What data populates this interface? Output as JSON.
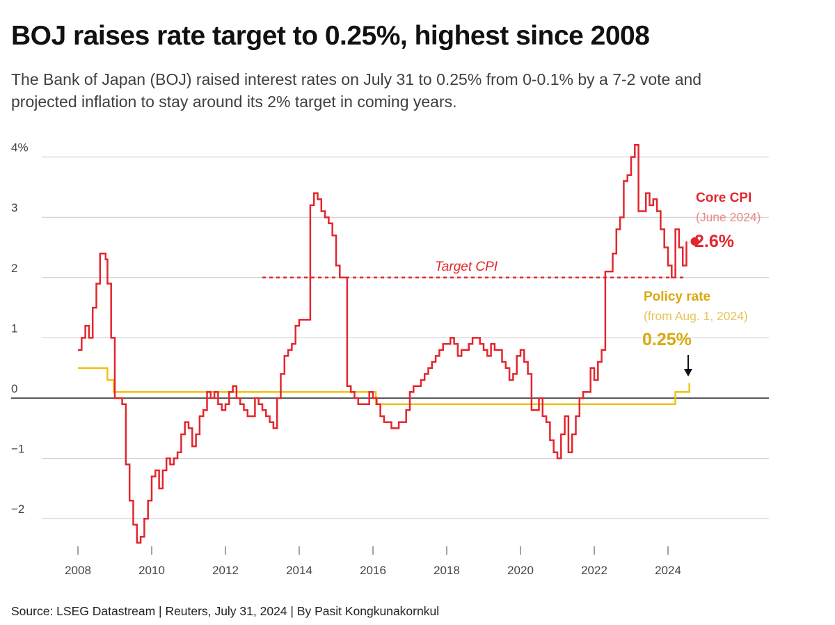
{
  "title": "BOJ raises rate target to 0.25%, highest since 2008",
  "subtitle": "The Bank of Japan (BOJ) raised interest rates on July 31 to 0.25% from 0-0.1% by a 7-2 vote and projected inflation to stay around its 2% target in coming years.",
  "source": "Source: LSEG Datastream | Reuters, July 31, 2024 | By Pasit Kongkunakornkul",
  "colors": {
    "cpi": "#e3262d",
    "policy": "#f2c114",
    "policy_text": "#d9a90e",
    "target": "#e3262d",
    "grid": "#c8c8c8",
    "zero": "#222222"
  },
  "chart_data": {
    "type": "line",
    "title": "BOJ raises rate target to 0.25%, highest since 2008",
    "xlim": [
      2008.0,
      2024.58
    ],
    "ylim": [
      -2.5,
      4.2
    ],
    "x_ticks": [
      2008,
      2010,
      2012,
      2014,
      2016,
      2018,
      2020,
      2022,
      2024
    ],
    "x_tick_labels": [
      "2008",
      "2010",
      "2012",
      "2014",
      "2016",
      "2018",
      "2020",
      "2022",
      "2024"
    ],
    "y_ticks": [
      4,
      3,
      2,
      1,
      0,
      -1,
      -2
    ],
    "y_tick_labels": [
      "4%",
      "3",
      "2",
      "1",
      "0",
      "−1",
      "−2"
    ],
    "target_line": {
      "label": "Target CPI",
      "value": 2,
      "x_start": 2013.0,
      "x_end": 2024.5
    },
    "series": [
      {
        "name": "Core CPI",
        "sublabel": "(June 2024)",
        "last_value_label": "2.6%",
        "step": true,
        "points": [
          [
            2008.0,
            0.8
          ],
          [
            2008.1,
            1.0
          ],
          [
            2008.2,
            1.2
          ],
          [
            2008.3,
            1.0
          ],
          [
            2008.4,
            1.5
          ],
          [
            2008.5,
            1.9
          ],
          [
            2008.6,
            2.4
          ],
          [
            2008.75,
            2.3
          ],
          [
            2008.8,
            1.9
          ],
          [
            2008.9,
            1.0
          ],
          [
            2009.0,
            0.0
          ],
          [
            2009.2,
            -0.1
          ],
          [
            2009.3,
            -1.1
          ],
          [
            2009.4,
            -1.7
          ],
          [
            2009.5,
            -2.1
          ],
          [
            2009.6,
            -2.4
          ],
          [
            2009.7,
            -2.3
          ],
          [
            2009.8,
            -2.0
          ],
          [
            2009.9,
            -1.7
          ],
          [
            2010.0,
            -1.3
          ],
          [
            2010.1,
            -1.2
          ],
          [
            2010.2,
            -1.5
          ],
          [
            2010.3,
            -1.2
          ],
          [
            2010.4,
            -1.0
          ],
          [
            2010.5,
            -1.1
          ],
          [
            2010.6,
            -1.0
          ],
          [
            2010.7,
            -0.9
          ],
          [
            2010.8,
            -0.6
          ],
          [
            2010.9,
            -0.4
          ],
          [
            2011.0,
            -0.5
          ],
          [
            2011.1,
            -0.8
          ],
          [
            2011.2,
            -0.6
          ],
          [
            2011.3,
            -0.3
          ],
          [
            2011.4,
            -0.2
          ],
          [
            2011.5,
            0.1
          ],
          [
            2011.6,
            0.0
          ],
          [
            2011.7,
            0.1
          ],
          [
            2011.8,
            -0.1
          ],
          [
            2011.9,
            -0.2
          ],
          [
            2012.0,
            -0.1
          ],
          [
            2012.1,
            0.1
          ],
          [
            2012.2,
            0.2
          ],
          [
            2012.3,
            0.0
          ],
          [
            2012.4,
            -0.1
          ],
          [
            2012.5,
            -0.2
          ],
          [
            2012.6,
            -0.3
          ],
          [
            2012.7,
            -0.3
          ],
          [
            2012.8,
            0.0
          ],
          [
            2012.9,
            -0.1
          ],
          [
            2013.0,
            -0.2
          ],
          [
            2013.1,
            -0.3
          ],
          [
            2013.2,
            -0.4
          ],
          [
            2013.3,
            -0.5
          ],
          [
            2013.4,
            0.0
          ],
          [
            2013.5,
            0.4
          ],
          [
            2013.6,
            0.7
          ],
          [
            2013.7,
            0.8
          ],
          [
            2013.8,
            0.9
          ],
          [
            2013.9,
            1.2
          ],
          [
            2014.0,
            1.3
          ],
          [
            2014.1,
            1.3
          ],
          [
            2014.2,
            1.3
          ],
          [
            2014.3,
            3.2
          ],
          [
            2014.4,
            3.4
          ],
          [
            2014.5,
            3.3
          ],
          [
            2014.6,
            3.1
          ],
          [
            2014.7,
            3.0
          ],
          [
            2014.8,
            2.9
          ],
          [
            2014.9,
            2.7
          ],
          [
            2015.0,
            2.2
          ],
          [
            2015.1,
            2.0
          ],
          [
            2015.2,
            2.0
          ],
          [
            2015.3,
            0.2
          ],
          [
            2015.4,
            0.1
          ],
          [
            2015.5,
            0.0
          ],
          [
            2015.6,
            -0.1
          ],
          [
            2015.7,
            -0.1
          ],
          [
            2015.8,
            -0.1
          ],
          [
            2015.9,
            0.1
          ],
          [
            2016.0,
            0.0
          ],
          [
            2016.1,
            -0.1
          ],
          [
            2016.2,
            -0.3
          ],
          [
            2016.3,
            -0.4
          ],
          [
            2016.4,
            -0.4
          ],
          [
            2016.5,
            -0.5
          ],
          [
            2016.6,
            -0.5
          ],
          [
            2016.7,
            -0.4
          ],
          [
            2016.8,
            -0.4
          ],
          [
            2016.9,
            -0.2
          ],
          [
            2017.0,
            0.1
          ],
          [
            2017.1,
            0.2
          ],
          [
            2017.2,
            0.2
          ],
          [
            2017.3,
            0.3
          ],
          [
            2017.4,
            0.4
          ],
          [
            2017.5,
            0.5
          ],
          [
            2017.6,
            0.6
          ],
          [
            2017.7,
            0.7
          ],
          [
            2017.8,
            0.8
          ],
          [
            2017.9,
            0.9
          ],
          [
            2018.0,
            0.9
          ],
          [
            2018.1,
            1.0
          ],
          [
            2018.2,
            0.9
          ],
          [
            2018.3,
            0.7
          ],
          [
            2018.4,
            0.8
          ],
          [
            2018.5,
            0.8
          ],
          [
            2018.6,
            0.9
          ],
          [
            2018.7,
            1.0
          ],
          [
            2018.8,
            1.0
          ],
          [
            2018.9,
            0.9
          ],
          [
            2019.0,
            0.8
          ],
          [
            2019.1,
            0.7
          ],
          [
            2019.2,
            0.9
          ],
          [
            2019.3,
            0.8
          ],
          [
            2019.4,
            0.8
          ],
          [
            2019.5,
            0.6
          ],
          [
            2019.6,
            0.5
          ],
          [
            2019.7,
            0.3
          ],
          [
            2019.8,
            0.4
          ],
          [
            2019.9,
            0.7
          ],
          [
            2020.0,
            0.8
          ],
          [
            2020.1,
            0.6
          ],
          [
            2020.2,
            0.4
          ],
          [
            2020.3,
            -0.2
          ],
          [
            2020.4,
            -0.2
          ],
          [
            2020.5,
            0.0
          ],
          [
            2020.6,
            -0.3
          ],
          [
            2020.7,
            -0.4
          ],
          [
            2020.8,
            -0.7
          ],
          [
            2020.9,
            -0.9
          ],
          [
            2021.0,
            -1.0
          ],
          [
            2021.1,
            -0.6
          ],
          [
            2021.2,
            -0.3
          ],
          [
            2021.3,
            -0.9
          ],
          [
            2021.4,
            -0.6
          ],
          [
            2021.5,
            -0.3
          ],
          [
            2021.6,
            0.0
          ],
          [
            2021.7,
            0.1
          ],
          [
            2021.8,
            0.1
          ],
          [
            2021.9,
            0.5
          ],
          [
            2022.0,
            0.3
          ],
          [
            2022.1,
            0.6
          ],
          [
            2022.2,
            0.8
          ],
          [
            2022.3,
            2.1
          ],
          [
            2022.4,
            2.1
          ],
          [
            2022.5,
            2.4
          ],
          [
            2022.6,
            2.8
          ],
          [
            2022.7,
            3.0
          ],
          [
            2022.8,
            3.6
          ],
          [
            2022.9,
            3.7
          ],
          [
            2023.0,
            4.0
          ],
          [
            2023.1,
            4.2
          ],
          [
            2023.2,
            3.1
          ],
          [
            2023.3,
            3.1
          ],
          [
            2023.4,
            3.4
          ],
          [
            2023.5,
            3.2
          ],
          [
            2023.6,
            3.3
          ],
          [
            2023.7,
            3.1
          ],
          [
            2023.8,
            2.8
          ],
          [
            2023.9,
            2.5
          ],
          [
            2024.0,
            2.2
          ],
          [
            2024.1,
            2.0
          ],
          [
            2024.2,
            2.8
          ],
          [
            2024.3,
            2.5
          ],
          [
            2024.4,
            2.2
          ],
          [
            2024.5,
            2.6
          ]
        ]
      },
      {
        "name": "Policy rate",
        "sublabel": "(from Aug. 1, 2024)",
        "last_value_label": "0.25%",
        "step": true,
        "points": [
          [
            2008.0,
            0.5
          ],
          [
            2008.8,
            0.3
          ],
          [
            2008.97,
            0.1
          ],
          [
            2016.08,
            -0.1
          ],
          [
            2024.2,
            0.1
          ],
          [
            2024.58,
            0.25
          ]
        ]
      }
    ]
  }
}
